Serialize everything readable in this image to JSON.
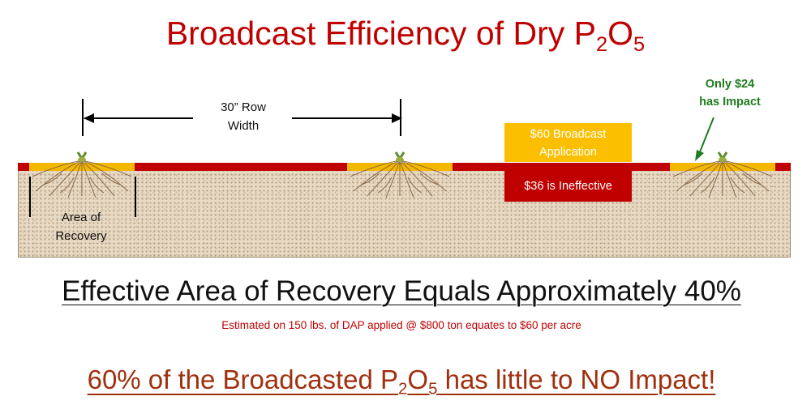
{
  "title": {
    "main": "Broadcast Efficiency of Dry P",
    "sub1": "2",
    "mid": "O",
    "sub2": "5"
  },
  "row_width_label": {
    "line1": "30” Row",
    "line2": "Width"
  },
  "area_of_recovery_label": {
    "line1": "Area of",
    "line2": "Recovery"
  },
  "broadcast_box": {
    "line1": "$60  Broadcast",
    "line2": "Application"
  },
  "ineffective_box": "$36 is Ineffective",
  "impact_callout": {
    "line1": "Only $24",
    "line2": "has Impact"
  },
  "headline": "Effective Area of Recovery Equals Approximately 40%",
  "footnote": "Estimated on 150 lbs. of DAP applied @ $800 ton equates to $60 per acre",
  "bottom_statement": {
    "before": "60% of the Broadcasted P",
    "sub1": "2",
    "mid": "O",
    "sub2": "5",
    "after": " has little to NO Impact!"
  },
  "colors": {
    "red": "#c00000",
    "gold": "#f5b800",
    "green": "#1e7b1e",
    "soil": "#e8d9c4"
  }
}
